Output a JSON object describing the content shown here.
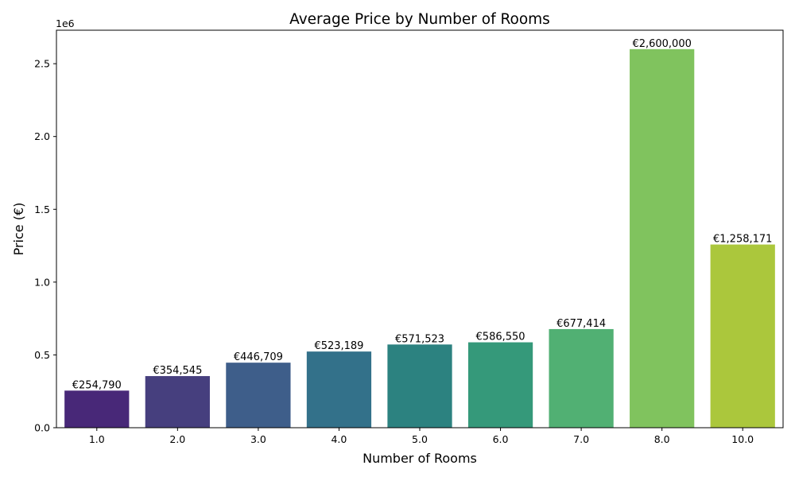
{
  "chart_data": {
    "type": "bar",
    "title": "Average Price by Number of Rooms",
    "xlabel": "Number of Rooms",
    "ylabel": "Price (€)",
    "y_offset_label": "1e6",
    "categories": [
      "1.0",
      "2.0",
      "3.0",
      "4.0",
      "5.0",
      "6.0",
      "7.0",
      "8.0",
      "10.0"
    ],
    "values": [
      254790,
      354545,
      446709,
      523189,
      571523,
      586550,
      677414,
      2600000,
      1258171
    ],
    "value_labels": [
      "€254,790",
      "€354,545",
      "€446,709",
      "€523,189",
      "€571,523",
      "€586,550",
      "€677,414",
      "€2,600,000",
      "€1,258,171"
    ],
    "colors": [
      "#482878",
      "#463f7e",
      "#3e5e8a",
      "#33718a",
      "#2c8280",
      "#35997a",
      "#51b073",
      "#80c35e",
      "#abc73c"
    ],
    "ylim": [
      0,
      2730000
    ],
    "yticks": [
      0,
      500000,
      1000000,
      1500000,
      2000000,
      2500000
    ],
    "ytick_labels": [
      "0.0",
      "0.5",
      "1.0",
      "1.5",
      "2.0",
      "2.5"
    ],
    "grid": false,
    "legend": "none"
  }
}
